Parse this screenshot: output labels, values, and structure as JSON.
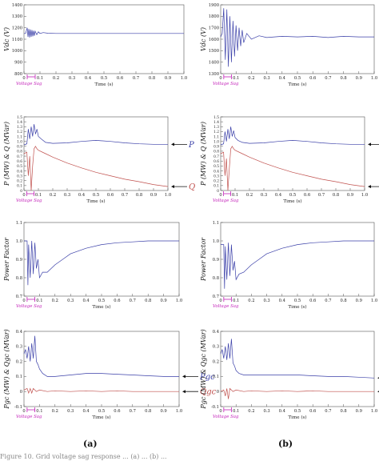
{
  "figure": {
    "panel_labels": [
      "(a)",
      "(b)"
    ],
    "caption_fragment": "Figure 10. Grid voltage sag response ... (a) ... (b) ..."
  },
  "chart_data": [
    {
      "type": "line",
      "panel": "a-vdc",
      "ylabel": "Vdc (V)",
      "xlabel": "Time (s)",
      "xlim": [
        0,
        1.0
      ],
      "ylim": [
        800,
        1400
      ],
      "yticks": [
        "800",
        "900",
        "1000",
        "1100",
        "1200",
        "1300",
        "1400"
      ],
      "xticks": [
        "0",
        "0.1",
        "0.2",
        "0.3",
        "0.4",
        "0.5",
        "0.6",
        "0.7",
        "0.8",
        "0.9",
        "1.0"
      ],
      "annotation": "Voltage Sag",
      "sag_interval": [
        0.02,
        0.07
      ],
      "series": [
        {
          "color": "#3a3fa8",
          "x": [
            0,
            0.01,
            0.02,
            0.025,
            0.03,
            0.035,
            0.04,
            0.045,
            0.05,
            0.055,
            0.06,
            0.065,
            0.07,
            0.08,
            0.09,
            0.1,
            0.12,
            0.15,
            0.2,
            0.3,
            0.5,
            0.7,
            1.0
          ],
          "y": [
            1150,
            1150,
            1200,
            1120,
            1190,
            1115,
            1185,
            1120,
            1180,
            1125,
            1175,
            1130,
            1170,
            1140,
            1165,
            1150,
            1158,
            1152,
            1150,
            1150,
            1150,
            1150,
            1150
          ]
        }
      ]
    },
    {
      "type": "line",
      "panel": "b-vdc",
      "ylabel": "Vdc (V)",
      "xlabel": "Time (s)",
      "xlim": [
        0,
        1.0
      ],
      "ylim": [
        1300,
        1900
      ],
      "yticks": [
        "1300",
        "1400",
        "1500",
        "1600",
        "1700",
        "1800",
        "1900"
      ],
      "xticks": [
        "0",
        "0.1",
        "0.2",
        "0.3",
        "0.4",
        "0.5",
        "0.6",
        "0.7",
        "0.8",
        "0.9",
        "1.0"
      ],
      "annotation": "Voltage Sag",
      "sag_interval": [
        0.02,
        0.07
      ],
      "series": [
        {
          "color": "#3a3fa8",
          "x": [
            0,
            0.01,
            0.02,
            0.03,
            0.04,
            0.05,
            0.06,
            0.07,
            0.08,
            0.09,
            0.1,
            0.11,
            0.12,
            0.13,
            0.14,
            0.15,
            0.17,
            0.2,
            0.25,
            0.3,
            0.4,
            0.5,
            0.6,
            0.7,
            0.8,
            0.9,
            1.0
          ],
          "y": [
            1620,
            1650,
            1870,
            1420,
            1860,
            1360,
            1800,
            1400,
            1760,
            1450,
            1720,
            1500,
            1700,
            1540,
            1680,
            1570,
            1650,
            1600,
            1630,
            1615,
            1625,
            1620,
            1625,
            1615,
            1625,
            1620,
            1620
          ]
        }
      ]
    },
    {
      "type": "line",
      "panel": "a-pq",
      "ylabel": "P (MW) & Q (MVar)",
      "xlabel": "Time (s)",
      "xlim": [
        0,
        1.0
      ],
      "ylim": [
        0,
        1.5
      ],
      "yticks": [
        "0",
        "0.1",
        "0.2",
        "0.3",
        "0.4",
        "0.5",
        "0.6",
        "0.7",
        "0.8",
        "0.9",
        "1.0",
        "1.1",
        "1.2",
        "1.3",
        "1.4",
        "1.5"
      ],
      "xticks": [
        "0",
        "0.1",
        "0.2",
        "0.3",
        "0.4",
        "0.5",
        "0.6",
        "0.7",
        "0.8",
        "0.9",
        "1.0"
      ],
      "annotation": "Voltage Sag",
      "sag_interval": [
        0.02,
        0.07
      ],
      "series": [
        {
          "name": "P",
          "color": "#3a3fa8",
          "x": [
            0,
            0.02,
            0.03,
            0.04,
            0.05,
            0.06,
            0.07,
            0.08,
            0.09,
            0.1,
            0.12,
            0.15,
            0.2,
            0.3,
            0.4,
            0.5,
            0.6,
            0.7,
            0.8,
            0.9,
            1.0
          ],
          "y": [
            0.93,
            0.95,
            1.25,
            1.05,
            1.3,
            1.1,
            1.35,
            1.15,
            1.25,
            1.1,
            1.05,
            0.98,
            0.96,
            0.97,
            1.0,
            1.02,
            1.0,
            0.97,
            0.95,
            0.94,
            0.94
          ]
        },
        {
          "name": "Q",
          "color": "#c0504d",
          "x": [
            0,
            0.02,
            0.03,
            0.04,
            0.05,
            0.06,
            0.07,
            0.08,
            0.09,
            0.1,
            0.15,
            0.2,
            0.3,
            0.4,
            0.5,
            0.6,
            0.7,
            0.8,
            0.9,
            1.0
          ],
          "y": [
            0.75,
            0.78,
            0.3,
            0.7,
            -0.05,
            0.5,
            0.85,
            0.9,
            0.85,
            0.82,
            0.75,
            0.68,
            0.56,
            0.46,
            0.37,
            0.3,
            0.23,
            0.18,
            0.12,
            0.08
          ]
        }
      ]
    },
    {
      "type": "line",
      "panel": "b-pq",
      "ylabel": "P (MW) & Q (MVar)",
      "xlabel": "Time (s)",
      "xlim": [
        0,
        1.0
      ],
      "ylim": [
        0,
        1.5
      ],
      "yticks": [
        "0",
        "0.1",
        "0.2",
        "0.3",
        "0.4",
        "0.5",
        "0.6",
        "0.7",
        "0.8",
        "0.9",
        "1.0",
        "1.1",
        "1.2",
        "1.3",
        "1.4",
        "1.5"
      ],
      "xticks": [
        "0",
        "0.1",
        "0.2",
        "0.3",
        "0.4",
        "0.5",
        "0.6",
        "0.7",
        "0.8",
        "0.9",
        "1.0"
      ],
      "annotation": "Voltage Sag",
      "sag_interval": [
        0.02,
        0.07
      ],
      "series": [
        {
          "name": "P",
          "color": "#3a3fa8",
          "x": [
            0,
            0.02,
            0.03,
            0.04,
            0.05,
            0.06,
            0.07,
            0.08,
            0.09,
            0.1,
            0.12,
            0.15,
            0.2,
            0.3,
            0.4,
            0.5,
            0.6,
            0.7,
            0.8,
            0.9,
            1.0
          ],
          "y": [
            0.93,
            0.95,
            1.2,
            1.0,
            1.25,
            1.05,
            1.3,
            1.1,
            1.22,
            1.08,
            1.02,
            0.98,
            0.96,
            0.97,
            1.0,
            1.02,
            1.0,
            0.97,
            0.95,
            0.94,
            0.94
          ]
        },
        {
          "name": "Q",
          "color": "#c0504d",
          "x": [
            0,
            0.02,
            0.03,
            0.04,
            0.05,
            0.06,
            0.07,
            0.08,
            0.09,
            0.1,
            0.15,
            0.2,
            0.3,
            0.4,
            0.5,
            0.6,
            0.7,
            0.8,
            0.9,
            1.0
          ],
          "y": [
            0.75,
            0.78,
            0.3,
            0.65,
            -0.08,
            0.45,
            0.85,
            0.9,
            0.85,
            0.82,
            0.75,
            0.68,
            0.56,
            0.46,
            0.37,
            0.3,
            0.23,
            0.18,
            0.12,
            0.08
          ]
        }
      ]
    },
    {
      "type": "line",
      "panel": "a-pf",
      "ylabel": "Power Factor",
      "xlabel": "Time (s)",
      "xlim": [
        0,
        1.0
      ],
      "ylim": [
        0.7,
        1.1
      ],
      "yticks": [
        "0.7",
        "0.8",
        "0.9",
        "1.0",
        "1.1"
      ],
      "xticks": [
        "0",
        "0.1",
        "0.2",
        "0.3",
        "0.4",
        "0.5",
        "0.6",
        "0.7",
        "0.8",
        "0.9",
        "1.0"
      ],
      "annotation": "Voltage Sag",
      "sag_interval": [
        0.02,
        0.07
      ],
      "series": [
        {
          "color": "#3a3fa8",
          "x": [
            0,
            0.02,
            0.025,
            0.03,
            0.04,
            0.05,
            0.06,
            0.07,
            0.08,
            0.09,
            0.1,
            0.12,
            0.15,
            0.2,
            0.25,
            0.3,
            0.4,
            0.5,
            0.6,
            0.7,
            0.8,
            0.9,
            1.0
          ],
          "y": [
            1.0,
            1.0,
            0.76,
            0.98,
            0.8,
            1.0,
            0.82,
            0.99,
            0.85,
            0.9,
            0.8,
            0.83,
            0.83,
            0.87,
            0.9,
            0.93,
            0.96,
            0.98,
            0.99,
            0.995,
            1.0,
            1.0,
            1.0
          ]
        }
      ]
    },
    {
      "type": "line",
      "panel": "b-pf",
      "ylabel": "Power Factor",
      "xlabel": "Time (s)",
      "xlim": [
        0,
        1.0
      ],
      "ylim": [
        0.7,
        1.1
      ],
      "yticks": [
        "0.7",
        "0.8",
        "0.9",
        "1.0",
        "1.1"
      ],
      "xticks": [
        "0",
        "0.1",
        "0.2",
        "0.3",
        "0.4",
        "0.5",
        "0.6",
        "0.7",
        "0.8",
        "0.9",
        "1.0"
      ],
      "annotation": "Voltage Sag",
      "sag_interval": [
        0.02,
        0.07
      ],
      "series": [
        {
          "color": "#3a3fa8",
          "x": [
            0,
            0.02,
            0.025,
            0.03,
            0.04,
            0.05,
            0.06,
            0.07,
            0.08,
            0.09,
            0.1,
            0.12,
            0.15,
            0.2,
            0.25,
            0.3,
            0.4,
            0.5,
            0.6,
            0.7,
            0.8,
            0.9,
            1.0
          ],
          "y": [
            0.98,
            0.98,
            0.74,
            0.97,
            0.79,
            0.99,
            0.81,
            0.98,
            0.84,
            0.89,
            0.79,
            0.82,
            0.83,
            0.87,
            0.9,
            0.93,
            0.96,
            0.98,
            0.99,
            0.995,
            1.0,
            1.0,
            1.0
          ]
        }
      ]
    },
    {
      "type": "line",
      "panel": "a-pgc",
      "ylabel": "Pgc (MW) & Qgc (MVar)",
      "xlabel": "Time (s)",
      "xlim": [
        0,
        1.0
      ],
      "ylim": [
        -0.1,
        0.4
      ],
      "yticks": [
        "-0.1",
        "0",
        "0.1",
        "0.2",
        "0.3",
        "0.4"
      ],
      "xticks": [
        "0",
        "0.1",
        "0.2",
        "0.3",
        "0.4",
        "0.5",
        "0.6",
        "0.7",
        "0.8",
        "0.9",
        "1.0"
      ],
      "annotation": "Voltage Sag",
      "sag_interval": [
        0.02,
        0.07
      ],
      "series": [
        {
          "name": "Pgc",
          "color": "#3a3fa8",
          "x": [
            0,
            0.01,
            0.02,
            0.03,
            0.04,
            0.05,
            0.06,
            0.07,
            0.08,
            0.09,
            0.1,
            0.12,
            0.15,
            0.2,
            0.3,
            0.4,
            0.5,
            0.6,
            0.7,
            0.8,
            0.9,
            1.0
          ],
          "y": [
            0.25,
            0.28,
            0.22,
            0.3,
            0.2,
            0.32,
            0.22,
            0.37,
            0.2,
            0.18,
            0.15,
            0.12,
            0.1,
            0.1,
            0.11,
            0.12,
            0.12,
            0.115,
            0.11,
            0.105,
            0.1,
            0.1
          ]
        },
        {
          "name": "Qgc",
          "color": "#c0504d",
          "x": [
            0,
            0.02,
            0.03,
            0.04,
            0.05,
            0.06,
            0.07,
            0.08,
            0.1,
            0.15,
            0.2,
            0.3,
            0.4,
            0.5,
            0.6,
            0.7,
            0.8,
            0.9,
            1.0
          ],
          "y": [
            0.01,
            0.02,
            -0.01,
            0.02,
            -0.01,
            0.02,
            0.01,
            0.0,
            0.01,
            0.0,
            0.005,
            0.0,
            0.005,
            0.0,
            0.005,
            0.0,
            0.0,
            0.0,
            0.0
          ]
        }
      ]
    },
    {
      "type": "line",
      "panel": "b-pgc",
      "ylabel": "Pgc (MW) & Qgc (MVar)",
      "xlabel": "Time (s)",
      "xlim": [
        0,
        1.0
      ],
      "ylim": [
        -0.1,
        0.4
      ],
      "yticks": [
        "-0.1",
        "0",
        "0.1",
        "0.2",
        "0.3",
        "0.4"
      ],
      "xticks": [
        "0",
        "0.1",
        "0.2",
        "0.3",
        "0.4",
        "0.5",
        "0.6",
        "0.7",
        "0.8",
        "0.9",
        "1.0"
      ],
      "annotation": "Voltage Sag",
      "sag_interval": [
        0.02,
        0.07
      ],
      "series": [
        {
          "name": "Pgc",
          "color": "#3a3fa8",
          "x": [
            0,
            0.01,
            0.02,
            0.03,
            0.04,
            0.05,
            0.06,
            0.07,
            0.08,
            0.09,
            0.1,
            0.12,
            0.15,
            0.2,
            0.3,
            0.4,
            0.5,
            0.6,
            0.7,
            0.8,
            0.9,
            1.0
          ],
          "y": [
            0.25,
            0.28,
            0.22,
            0.3,
            0.21,
            0.32,
            0.22,
            0.35,
            0.19,
            0.17,
            0.14,
            0.12,
            0.11,
            0.11,
            0.11,
            0.11,
            0.11,
            0.105,
            0.1,
            0.1,
            0.095,
            0.09
          ]
        },
        {
          "name": "Qgc",
          "color": "#c0504d",
          "x": [
            0,
            0.02,
            0.03,
            0.04,
            0.05,
            0.06,
            0.07,
            0.08,
            0.1,
            0.15,
            0.2,
            0.3,
            0.4,
            0.5,
            0.6,
            0.7,
            0.8,
            0.9,
            1.0
          ],
          "y": [
            0.0,
            0.01,
            -0.03,
            0.02,
            -0.05,
            0.02,
            0.01,
            0.0,
            0.01,
            0.0,
            0.005,
            0.0,
            0.005,
            0.0,
            0.005,
            0.0,
            0.0,
            0.0,
            0.0
          ]
        }
      ]
    }
  ]
}
